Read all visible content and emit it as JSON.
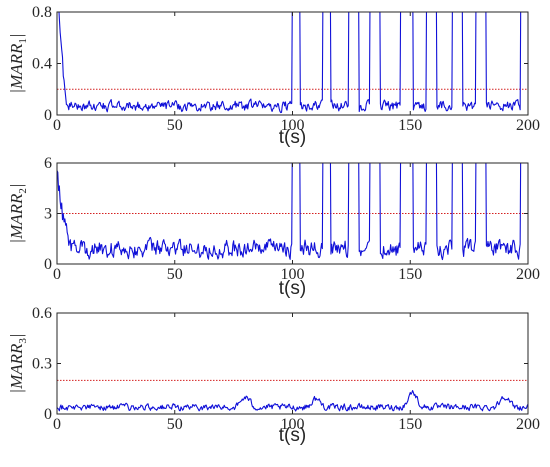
{
  "chart_data": [
    {
      "type": "line",
      "ylabel": "|MARR",
      "ylabel_sub": "1",
      "ylabel_close": "|",
      "xlabel": "t(s)",
      "xlim": [
        0,
        200
      ],
      "ylim": [
        0,
        0.8
      ],
      "xticks": [
        0,
        50,
        100,
        150,
        200
      ],
      "yticks": [
        0,
        0.4,
        0.8
      ],
      "ytick_labels": [
        "0",
        "0.4",
        "0.8"
      ],
      "threshold": 0.2,
      "series_color": "#1010d8",
      "threshold_color": "#d42020",
      "baseline": 0.07,
      "noise": 0.06,
      "initial_peak": [
        0,
        4,
        1.0
      ],
      "spikes": [
        [
          100,
          103
        ],
        [
          113,
          116
        ],
        [
          124,
          128
        ],
        [
          133,
          137
        ],
        [
          146,
          151
        ],
        [
          157,
          161
        ],
        [
          168,
          172
        ],
        [
          178,
          182
        ],
        [
          197,
          200
        ]
      ]
    },
    {
      "type": "line",
      "ylabel": "|MARR",
      "ylabel_sub": "2",
      "ylabel_close": "|",
      "xlabel": "t(s)",
      "xlim": [
        0,
        200
      ],
      "ylim": [
        0,
        6
      ],
      "xticks": [
        0,
        50,
        100,
        150,
        200
      ],
      "yticks": [
        0,
        3,
        6
      ],
      "ytick_labels": [
        "0",
        "3",
        "6"
      ],
      "threshold": 3,
      "series_color": "#1010d8",
      "threshold_color": "#d42020",
      "baseline": 0.9,
      "noise": 0.8,
      "initial_peak": [
        0,
        5,
        5.3
      ],
      "spikes": [
        [
          100,
          103
        ],
        [
          113,
          116
        ],
        [
          124,
          128
        ],
        [
          133,
          137
        ],
        [
          146,
          151
        ],
        [
          157,
          161
        ],
        [
          168,
          172
        ],
        [
          178,
          182
        ],
        [
          197,
          200
        ]
      ]
    },
    {
      "type": "line",
      "ylabel": "|MARR",
      "ylabel_sub": "3",
      "ylabel_close": "|",
      "xlabel": "t(s)",
      "xlim": [
        0,
        200
      ],
      "ylim": [
        0,
        0.6
      ],
      "xticks": [
        0,
        50,
        100,
        150,
        200
      ],
      "yticks": [
        0,
        0.3,
        0.6
      ],
      "ytick_labels": [
        "0",
        "0.3",
        "0.6"
      ],
      "threshold": 0.2,
      "series_color": "#1010d8",
      "threshold_color": "#d42020",
      "baseline": 0.04,
      "noise": 0.03,
      "initial_peak": [
        0,
        0,
        0
      ],
      "spikes": [],
      "bumps": [
        [
          80,
          0.1
        ],
        [
          110,
          0.09
        ],
        [
          151,
          0.13
        ],
        [
          190,
          0.11
        ]
      ]
    }
  ]
}
